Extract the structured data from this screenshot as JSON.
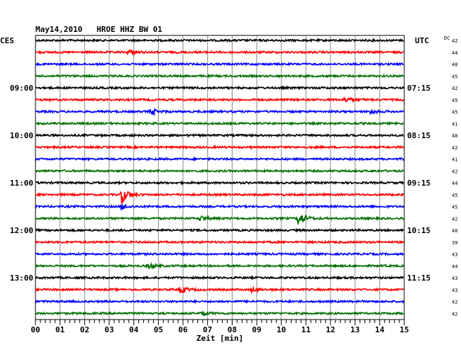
{
  "header": {
    "title": "May14,2010   HROE HHZ BW 01",
    "left_zone": "CES",
    "right_zone": "UTC",
    "dc_label": "DC"
  },
  "chart_data": {
    "type": "line",
    "title": "May14,2010   HROE HHZ BW 01",
    "xlabel": "Zeit [min]",
    "xlim": [
      0,
      15
    ],
    "x_ticks": [
      "00",
      "01",
      "02",
      "03",
      "04",
      "05",
      "06",
      "07",
      "08",
      "09",
      "10",
      "11",
      "12",
      "13",
      "14",
      "15"
    ],
    "grid": true,
    "trace_colors": [
      "#000000",
      "#ff0000",
      "#0000ff",
      "#007000"
    ],
    "left_time_labels": [
      {
        "row": 4,
        "label": "09:00"
      },
      {
        "row": 8,
        "label": "10:00"
      },
      {
        "row": 12,
        "label": "11:00"
      },
      {
        "row": 16,
        "label": "12:00"
      },
      {
        "row": 20,
        "label": "13:00"
      }
    ],
    "right_time_labels": [
      {
        "row": 4,
        "label": "07:15"
      },
      {
        "row": 8,
        "label": "08:15"
      },
      {
        "row": 12,
        "label": "09:15"
      },
      {
        "row": 16,
        "label": "10:15"
      },
      {
        "row": 20,
        "label": "11:15"
      }
    ],
    "dc_offsets": [
      "42",
      "44",
      "48",
      "45",
      "42",
      "45",
      "45",
      "41",
      "40",
      "42",
      "41",
      "42",
      "44",
      "45",
      "45",
      "42",
      "40",
      "39",
      "43",
      "44",
      "43",
      "43",
      "42",
      "42"
    ],
    "events": [
      {
        "row": 1,
        "minute": 3.8,
        "amplitude": 0.45
      },
      {
        "row": 5,
        "minute": 12.6,
        "amplitude": 0.45
      },
      {
        "row": 6,
        "minute": 4.7,
        "amplitude": 0.55
      },
      {
        "row": 6,
        "minute": 13.6,
        "amplitude": 0.35
      },
      {
        "row": 13,
        "minute": 3.5,
        "amplitude": 1.6
      },
      {
        "row": 14,
        "minute": 3.5,
        "amplitude": 0.5
      },
      {
        "row": 15,
        "minute": 10.7,
        "amplitude": 1.4
      },
      {
        "row": 15,
        "minute": 6.7,
        "amplitude": 0.45
      },
      {
        "row": 19,
        "minute": 4.6,
        "amplitude": 0.45
      },
      {
        "row": 21,
        "minute": 5.9,
        "amplitude": 0.6
      },
      {
        "row": 21,
        "minute": 8.8,
        "amplitude": 0.35
      },
      {
        "row": 23,
        "minute": 6.8,
        "amplitude": 0.35
      }
    ]
  }
}
